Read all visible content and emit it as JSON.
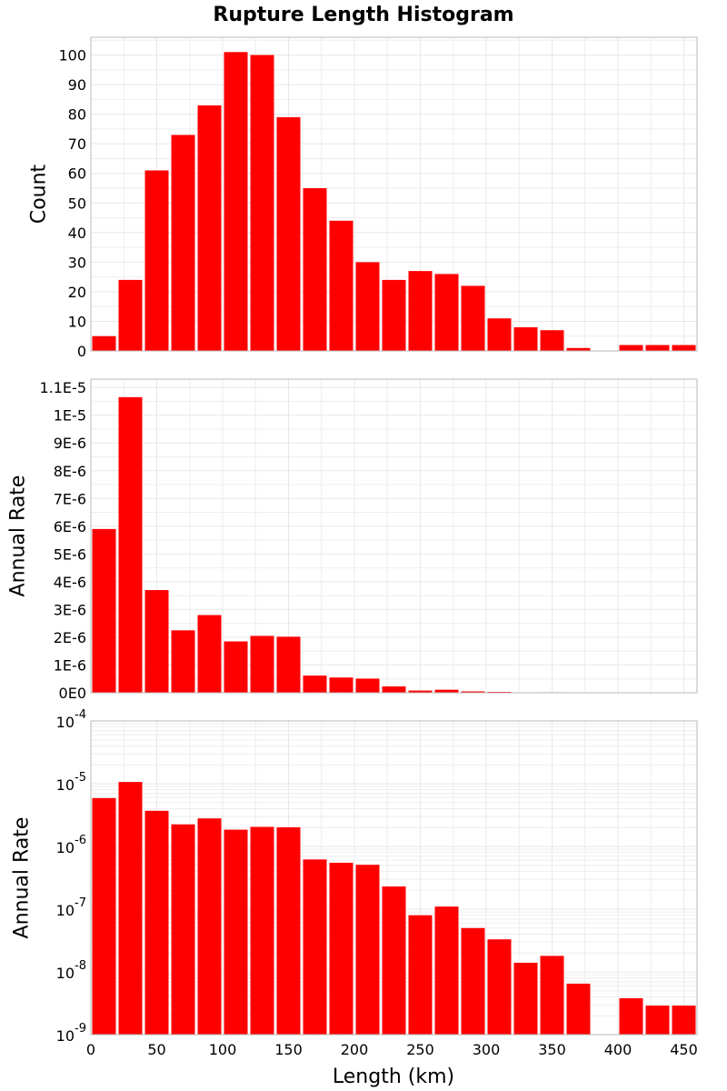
{
  "chart_data": {
    "title": "Rupture Length Histogram",
    "type": "bar",
    "xlabel": "Length (km)",
    "xlim": [
      0,
      460
    ],
    "xticks": [
      "0",
      "50",
      "100",
      "150",
      "200",
      "250",
      "300",
      "350",
      "400",
      "450"
    ],
    "bin_width": 20,
    "bin_centers": [
      10,
      30,
      50,
      70,
      90,
      110,
      130,
      150,
      170,
      190,
      210,
      230,
      250,
      270,
      290,
      310,
      330,
      350,
      370,
      390,
      410,
      430,
      450
    ],
    "panels": [
      {
        "ylabel": "Count",
        "scale": "linear",
        "ylim": [
          0,
          106
        ],
        "yticks": [
          "0",
          "10",
          "20",
          "30",
          "40",
          "50",
          "60",
          "70",
          "80",
          "90",
          "100"
        ],
        "grid": true,
        "values": [
          5,
          24,
          61,
          73,
          83,
          101,
          100,
          79,
          55,
          44,
          30,
          24,
          27,
          26,
          22,
          11,
          8,
          7,
          1,
          0,
          2,
          2,
          2
        ]
      },
      {
        "ylabel": "Annual Rate",
        "scale": "linear",
        "ylim": [
          0,
          1.13e-05
        ],
        "yticks": [
          "0E0",
          "1E-6",
          "2E-6",
          "3E-6",
          "4E-6",
          "5E-6",
          "6E-6",
          "7E-6",
          "8E-6",
          "9E-6",
          "1E-5",
          "1.1E-5"
        ],
        "grid": true,
        "values": [
          5.9e-06,
          1.065e-05,
          3.7e-06,
          2.25e-06,
          2.8e-06,
          1.85e-06,
          2.05e-06,
          2.02e-06,
          6.2e-07,
          5.5e-07,
          5.1e-07,
          2.3e-07,
          8e-08,
          1.1e-07,
          5e-08,
          3.3e-08,
          1.4e-08,
          1.8e-08,
          6.5e-09,
          0,
          3.8e-09,
          2.9e-09,
          2.9e-09
        ]
      },
      {
        "ylabel": "Annual Rate",
        "scale": "log",
        "ylim": [
          1e-09,
          0.0001
        ],
        "yticks": [
          {
            "base": "10",
            "exp": "-9"
          },
          {
            "base": "10",
            "exp": "-8"
          },
          {
            "base": "10",
            "exp": "-7"
          },
          {
            "base": "10",
            "exp": "-6"
          },
          {
            "base": "10",
            "exp": "-5"
          },
          {
            "base": "10",
            "exp": "-4"
          }
        ],
        "grid": true,
        "values": [
          5.9e-06,
          1.065e-05,
          3.7e-06,
          2.25e-06,
          2.8e-06,
          1.85e-06,
          2.05e-06,
          2.02e-06,
          6.2e-07,
          5.5e-07,
          5.1e-07,
          2.3e-07,
          8e-08,
          1.1e-07,
          5e-08,
          3.3e-08,
          1.4e-08,
          1.8e-08,
          6.5e-09,
          0,
          3.8e-09,
          2.9e-09,
          2.9e-09
        ]
      }
    ],
    "colors": {
      "bar": "#ff0000",
      "bar_edge": "#ffffff",
      "grid": "#e8e8e8",
      "frame": "#b8b8b8"
    }
  }
}
